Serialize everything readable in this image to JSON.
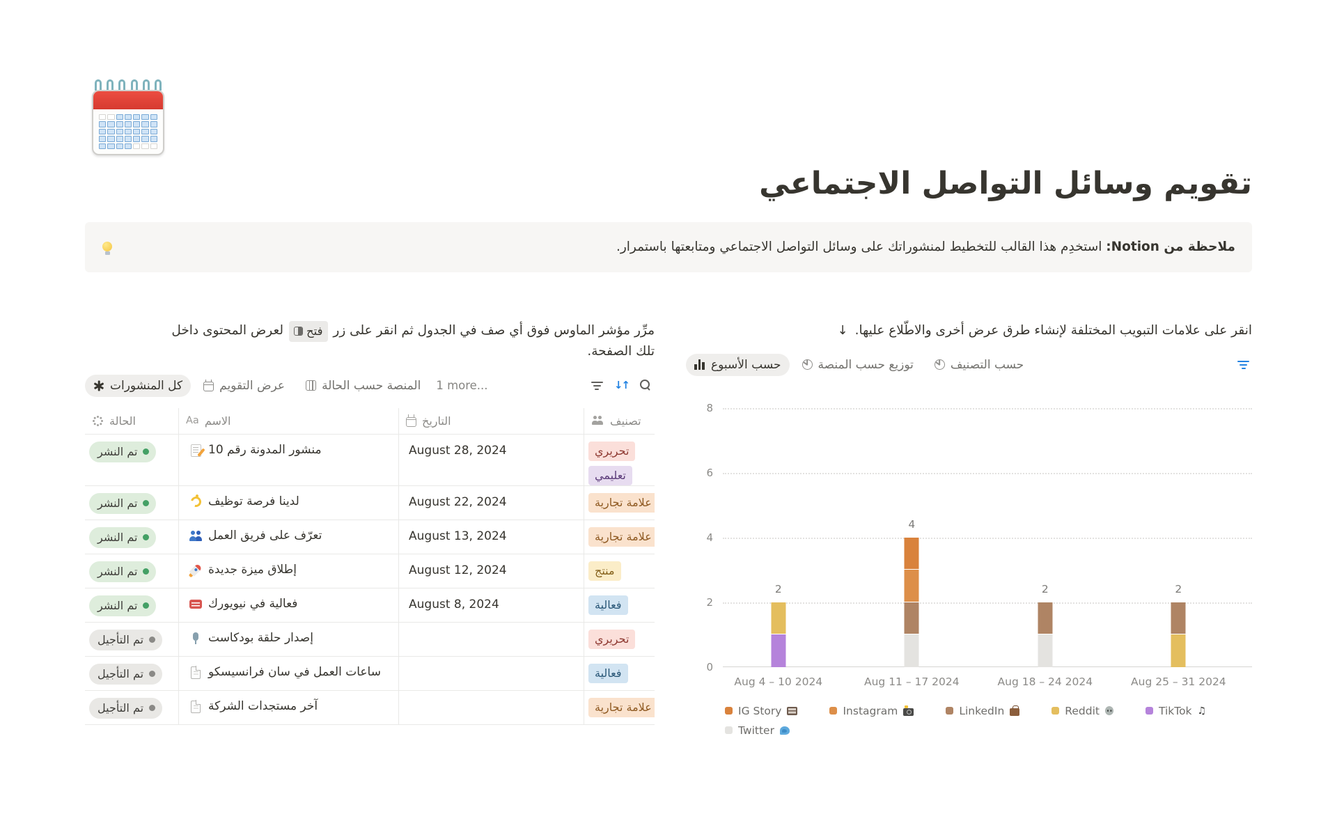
{
  "page": {
    "title": "تقويم وسائل التواصل الاجتماعي",
    "callout": {
      "icon": "lightbulb-icon",
      "bold": "ملاحظة من Notion:",
      "text": " استخدِم هذا القالب للتخطيط لمنشوراتك على وسائل التواصل الاجتماعي ومتابعتها باستمرار."
    }
  },
  "table_section": {
    "instruction_part1": "مرِّر مؤشر الماوس فوق أي صف في الجدول ثم انقر على زر",
    "open_button_label": "فتح",
    "instruction_part2": "لعرض المحتوى داخل تلك الصفحة.",
    "tabs": [
      {
        "id": "all-posts",
        "label": "كل المنشورات",
        "icon": "asterisk-icon",
        "active": true
      },
      {
        "id": "calendar-view",
        "label": "عرض التقويم",
        "icon": "calendar-view-icon",
        "active": false
      },
      {
        "id": "platform-by-status",
        "label": "المنصة حسب الحالة",
        "icon": "board-icon",
        "active": false
      }
    ],
    "more_label": "1 more...",
    "toolbar": [
      "filter-icon",
      "sort-icon",
      "search-icon"
    ],
    "columns": [
      {
        "label": "الحالة",
        "icon": "status-icon"
      },
      {
        "label": "الاسم",
        "icon": "text-Aa-icon"
      },
      {
        "label": "التاريخ",
        "icon": "date-icon"
      },
      {
        "label": "تصنيف",
        "icon": "people-icon"
      }
    ],
    "rows": [
      {
        "status": "تم النشر",
        "status_type": "published",
        "icon": "memo-icon",
        "name": "منشور المدونة رقم 10",
        "date": "August 28, 2024",
        "tags": [
          {
            "label": "تحريري",
            "color": "red"
          },
          {
            "label": "تعليمي",
            "color": "purple"
          }
        ]
      },
      {
        "status": "تم النشر",
        "status_type": "published",
        "icon": "dizzy-icon",
        "name": "لدينا فرصة توظيف",
        "date": "August 22, 2024",
        "tags": [
          {
            "label": "علامة تجارية",
            "color": "orange"
          }
        ]
      },
      {
        "status": "تم النشر",
        "status_type": "published",
        "icon": "people-blue-icon",
        "name": "تعرّف على فريق العمل",
        "date": "August 13, 2024",
        "tags": [
          {
            "label": "علامة تجارية",
            "color": "orange"
          }
        ]
      },
      {
        "status": "تم النشر",
        "status_type": "published",
        "icon": "rocket-icon",
        "name": "إطلاق ميزة جديدة",
        "date": "August 12, 2024",
        "tags": [
          {
            "label": "منتج",
            "color": "yellow"
          }
        ]
      },
      {
        "status": "تم النشر",
        "status_type": "published",
        "icon": "ticket-icon",
        "name": "فعالية في نيويورك",
        "date": "August 8, 2024",
        "tags": [
          {
            "label": "فعالية",
            "color": "blue"
          }
        ]
      },
      {
        "status": "تم التأجيل",
        "status_type": "postponed",
        "icon": "microphone-icon",
        "name": "إصدار حلقة بودكاست",
        "date": "",
        "tags": [
          {
            "label": "تحريري",
            "color": "red"
          }
        ]
      },
      {
        "status": "تم التأجيل",
        "status_type": "postponed",
        "icon": "page-icon",
        "name": "ساعات العمل في سان فرانسيسكو",
        "date": "",
        "tags": [
          {
            "label": "فعالية",
            "color": "blue"
          }
        ]
      },
      {
        "status": "تم التأجيل",
        "status_type": "postponed",
        "icon": "page-icon",
        "name": "آخر مستجدات الشركة",
        "date": "",
        "tags": [
          {
            "label": "علامة تجارية",
            "color": "orange"
          }
        ]
      }
    ]
  },
  "chart_section": {
    "arrow": "↓",
    "instruction": "انقر على علامات التبويب المختلفة لإنشاء طرق عرض أخرى والاطّلاع عليها.",
    "tabs": [
      {
        "id": "by-week",
        "label": "حسب الأسبوع",
        "icon": "bar-chart-icon",
        "active": true
      },
      {
        "id": "by-platform",
        "label": "توزيع حسب المنصة",
        "icon": "pie-chart-icon",
        "active": false
      },
      {
        "id": "by-category",
        "label": "حسب التصنيف",
        "icon": "pie-chart-icon",
        "active": false
      }
    ],
    "toolbar": [
      "filter-icon-blue"
    ]
  },
  "chart_data": {
    "type": "bar",
    "stacked": true,
    "categories": [
      "Aug 4 – 10 2024",
      "Aug 11 – 17 2024",
      "Aug 18 – 24 2024",
      "Aug 25 – 31 2024"
    ],
    "series": [
      {
        "name": "IG Story",
        "legend_icon": "film-frames-icon",
        "color": "#D9823C",
        "values": [
          0,
          1,
          0,
          0
        ]
      },
      {
        "name": "Instagram",
        "legend_icon": "camera-flash-icon",
        "color": "#DD8F49",
        "values": [
          0,
          1,
          0,
          0
        ]
      },
      {
        "name": "LinkedIn",
        "legend_icon": "briefcase-icon",
        "color": "#AF8464",
        "values": [
          0,
          1,
          1,
          1
        ]
      },
      {
        "name": "Reddit",
        "legend_icon": "alien-icon",
        "color": "#E4BE5E",
        "values": [
          1,
          0,
          0,
          1
        ]
      },
      {
        "name": "TikTok",
        "legend_icon": "music-note-icon",
        "color": "#B583DB",
        "values": [
          1,
          0,
          0,
          0
        ]
      },
      {
        "name": "Twitter",
        "legend_icon": "bird-icon",
        "color": "#E4E3E0",
        "values": [
          0,
          1,
          1,
          0
        ]
      }
    ],
    "stack_order_bottom_to_top": [
      "Twitter",
      "TikTok",
      "Reddit",
      "LinkedIn",
      "Instagram",
      "IG Story"
    ],
    "totals": [
      2,
      4,
      2,
      2
    ],
    "yticks": [
      0,
      2,
      4,
      6,
      8
    ],
    "ylim": [
      0,
      8
    ],
    "grid": "dotted-horizontal",
    "legend_position": "bottom",
    "bar_value_labels": true
  },
  "colors": {
    "accent_blue": "#2383E2",
    "text_dark": "#37352F",
    "text_gray": "#787774",
    "callout_bg": "#F7F6F4",
    "border": "#E9E9E7",
    "status_published_bg": "#DEEDDC",
    "status_published_dot": "#44A065",
    "status_postponed_bg": "#E9E8E5",
    "status_postponed_dot": "#8A8986"
  }
}
